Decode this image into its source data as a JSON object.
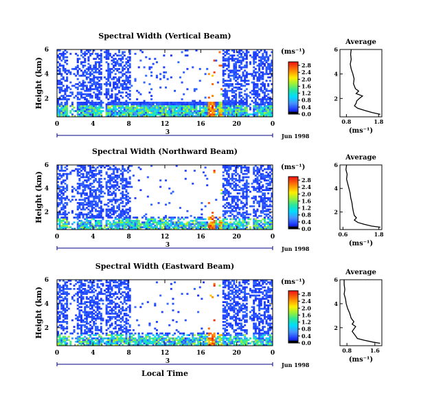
{
  "chart_data": [
    {
      "type": "heatmap",
      "title": "Spectral Width (Vertical Beam)",
      "xlabel": "",
      "ylabel": "Height (km)",
      "xlim": [
        0,
        24
      ],
      "ylim": [
        0.5,
        6
      ],
      "x_ticks": [
        "0",
        "4",
        "8",
        "12",
        "16",
        "20",
        "0"
      ],
      "y_ticks": [
        "2",
        "4",
        "6"
      ],
      "colorbar": {
        "label": "(ms⁻¹)",
        "ticks": [
          "0.0",
          "0.4",
          "0.8",
          "1.2",
          "1.6",
          "2.0",
          "2.4",
          "2.8"
        ],
        "vmax": 3.0
      },
      "date_label": "Jun 1998",
      "day_marker": "3",
      "average": {
        "title": "Average",
        "xlabel": "(ms⁻¹)",
        "x_ticks": [
          "0.8",
          "1.8"
        ],
        "y_ticks": [
          "2",
          "4",
          "6"
        ],
        "xlim": [
          0.6,
          1.9
        ],
        "profile": [
          [
            0.95,
            6.0
          ],
          [
            0.93,
            5.6
          ],
          [
            0.95,
            5.2
          ],
          [
            0.92,
            4.8
          ],
          [
            0.95,
            4.4
          ],
          [
            1.0,
            4.0
          ],
          [
            1.04,
            3.6
          ],
          [
            1.02,
            3.2
          ],
          [
            1.08,
            2.8
          ],
          [
            1.18,
            2.6
          ],
          [
            1.1,
            2.4
          ],
          [
            1.3,
            2.2
          ],
          [
            1.2,
            2.0
          ],
          [
            1.12,
            1.8
          ],
          [
            1.1,
            1.6
          ],
          [
            1.05,
            1.4
          ],
          [
            1.15,
            1.2
          ],
          [
            1.4,
            1.0
          ],
          [
            1.6,
            0.85
          ],
          [
            1.85,
            0.7
          ]
        ]
      }
    },
    {
      "type": "heatmap",
      "title": "Spectral Width (Northward Beam)",
      "xlabel": "",
      "ylabel": "Height (km)",
      "xlim": [
        0,
        24
      ],
      "ylim": [
        0.5,
        6
      ],
      "x_ticks": [
        "0",
        "4",
        "8",
        "12",
        "16",
        "20",
        "0"
      ],
      "y_ticks": [
        "2",
        "4",
        "6"
      ],
      "colorbar": {
        "label": "(ms⁻¹)",
        "ticks": [
          "0.0",
          "0.4",
          "0.8",
          "1.2",
          "1.6",
          "2.0",
          "2.4",
          "2.8"
        ],
        "vmax": 3.0
      },
      "date_label": "Jun 1998",
      "day_marker": "3",
      "average": {
        "title": "Average",
        "xlabel": "(ms⁻¹)",
        "x_ticks": [
          "0.6",
          "1.8"
        ],
        "y_ticks": [
          "2",
          "4",
          "6"
        ],
        "xlim": [
          0.5,
          1.9
        ],
        "profile": [
          [
            0.72,
            6.0
          ],
          [
            0.7,
            5.6
          ],
          [
            0.74,
            5.2
          ],
          [
            0.72,
            4.8
          ],
          [
            0.76,
            4.4
          ],
          [
            0.8,
            4.0
          ],
          [
            0.84,
            3.6
          ],
          [
            0.86,
            3.2
          ],
          [
            0.9,
            2.8
          ],
          [
            0.92,
            2.4
          ],
          [
            0.95,
            2.0
          ],
          [
            0.98,
            1.7
          ],
          [
            1.05,
            1.5
          ],
          [
            0.98,
            1.3
          ],
          [
            1.1,
            1.1
          ],
          [
            1.3,
            0.95
          ],
          [
            1.55,
            0.8
          ],
          [
            1.85,
            0.7
          ]
        ]
      }
    },
    {
      "type": "heatmap",
      "title": "Spectral Width (Eastward Beam)",
      "xlabel": "Local Time",
      "ylabel": "Height (km)",
      "xlim": [
        0,
        24
      ],
      "ylim": [
        0.5,
        6
      ],
      "x_ticks": [
        "0",
        "4",
        "8",
        "12",
        "16",
        "20",
        "0"
      ],
      "y_ticks": [
        "2",
        "4",
        "6"
      ],
      "colorbar": {
        "label": "(ms⁻¹)",
        "ticks": [
          "0.0",
          "0.4",
          "0.8",
          "1.2",
          "1.6",
          "2.0",
          "2.4",
          "2.8"
        ],
        "vmax": 3.0
      },
      "date_label": "Jun 1998",
      "day_marker": "3",
      "average": {
        "title": "Average",
        "xlabel": "(ms⁻¹)",
        "x_ticks": [
          "0.8",
          "1.6"
        ],
        "y_ticks": [
          "2",
          "4",
          "6"
        ],
        "xlim": [
          0.6,
          1.8
        ],
        "profile": [
          [
            0.72,
            6.0
          ],
          [
            0.72,
            5.6
          ],
          [
            0.74,
            5.2
          ],
          [
            0.72,
            4.8
          ],
          [
            0.76,
            4.4
          ],
          [
            0.78,
            4.0
          ],
          [
            0.82,
            3.6
          ],
          [
            0.88,
            3.2
          ],
          [
            0.92,
            2.8
          ],
          [
            1.0,
            2.5
          ],
          [
            0.95,
            2.3
          ],
          [
            1.05,
            2.1
          ],
          [
            1.0,
            1.9
          ],
          [
            0.95,
            1.7
          ],
          [
            1.0,
            1.5
          ],
          [
            1.05,
            1.3
          ],
          [
            1.1,
            1.1
          ],
          [
            1.3,
            0.95
          ],
          [
            1.55,
            0.8
          ],
          [
            1.75,
            0.7
          ]
        ]
      }
    }
  ]
}
